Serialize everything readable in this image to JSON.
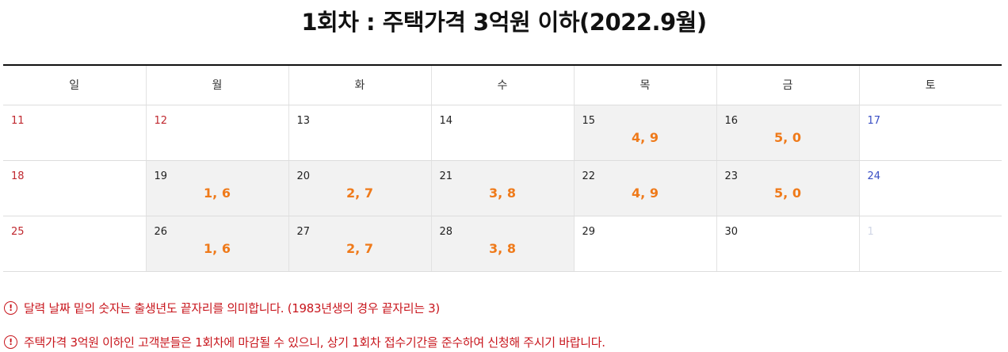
{
  "title": "1회차 : 주택가격 3억원 이하(2022.9월)",
  "weekdays": [
    "일",
    "월",
    "화",
    "수",
    "목",
    "금",
    "토"
  ],
  "weeks": [
    [
      {
        "day": "11",
        "digits": ""
      },
      {
        "day": "12",
        "digits": ""
      },
      {
        "day": "13",
        "digits": ""
      },
      {
        "day": "14",
        "digits": ""
      },
      {
        "day": "15",
        "digits": "4, 9"
      },
      {
        "day": "16",
        "digits": "5, 0"
      },
      {
        "day": "17",
        "digits": ""
      }
    ],
    [
      {
        "day": "18",
        "digits": ""
      },
      {
        "day": "19",
        "digits": "1, 6"
      },
      {
        "day": "20",
        "digits": "2, 7"
      },
      {
        "day": "21",
        "digits": "3, 8"
      },
      {
        "day": "22",
        "digits": "4, 9"
      },
      {
        "day": "23",
        "digits": "5, 0"
      },
      {
        "day": "24",
        "digits": ""
      }
    ],
    [
      {
        "day": "25",
        "digits": ""
      },
      {
        "day": "26",
        "digits": "1, 6"
      },
      {
        "day": "27",
        "digits": "2, 7"
      },
      {
        "day": "28",
        "digits": "3, 8"
      },
      {
        "day": "29",
        "digits": ""
      },
      {
        "day": "30",
        "digits": ""
      },
      {
        "day": "1",
        "digits": ""
      }
    ]
  ],
  "notes": [
    "달력 날짜 밑의 숫자는 출생년도 끝자리를 의미합니다. (1983년생의 경우 끝자리는 3)",
    "주택가격 3억원 이하인 고객분들은 1회차에 마감될 수 있으니, 상기 1회차 접수기간을 준수하여 신청해 주시기 바랍니다."
  ],
  "icons": {
    "note": "exclamation-circle-icon"
  },
  "colors": {
    "sunday": "#c0282f",
    "saturday": "#3a4fc4",
    "digits": "#ef7a1a",
    "notes": "#c8161d",
    "highlight": "#f2f2f2"
  }
}
